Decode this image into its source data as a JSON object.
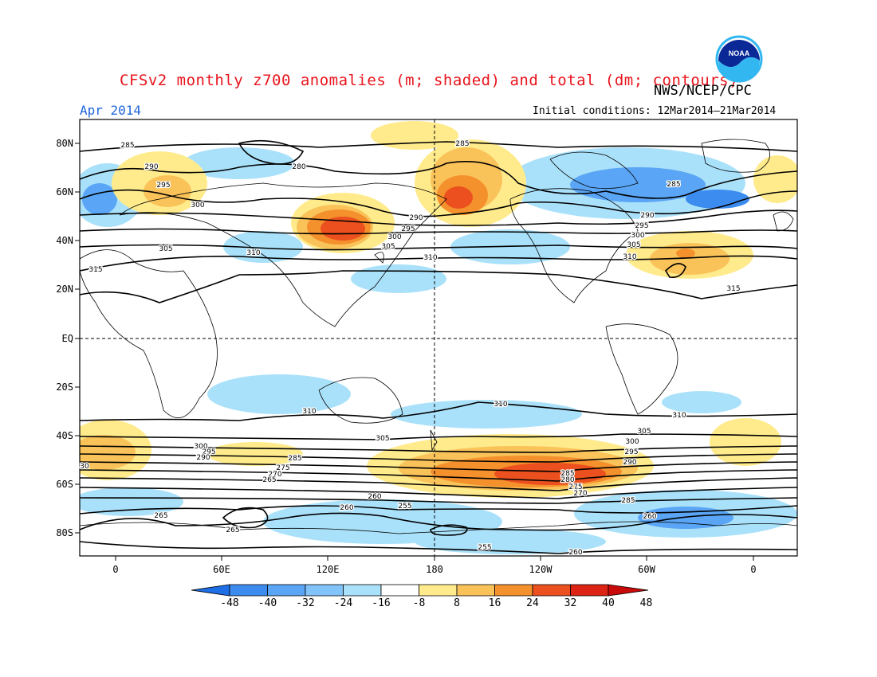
{
  "header": {
    "title": "CFSv2 monthly z700 anomalies (m; shaded) and total (dm; contours)",
    "agency": "NWS/NCEP/CPC",
    "month": "Apr 2014",
    "initial_conditions": "Initial conditions: 12Mar2014–21Mar2014",
    "logo_text": "NOAA"
  },
  "axes": {
    "lat_labels": [
      "80N",
      "60N",
      "40N",
      "20N",
      "EQ",
      "20S",
      "40S",
      "60S",
      "80S"
    ],
    "lon_labels": [
      "0",
      "60E",
      "120E",
      "180",
      "120W",
      "60W",
      "0"
    ]
  },
  "colorbar": {
    "labels": [
      "-48",
      "-40",
      "-32",
      "-24",
      "-16",
      "-8",
      "8",
      "16",
      "24",
      "32",
      "40",
      "48"
    ],
    "colors": [
      "#1e6ee6",
      "#3c8cf0",
      "#5aa5f5",
      "#82c3fa",
      "#aae1fa",
      "#ffffff",
      "#ffeb8c",
      "#fac35a",
      "#f5912d",
      "#eb501e",
      "#dc2314",
      "#c80a0a"
    ]
  },
  "contour_labels": [
    {
      "text": "285"
    },
    {
      "text": "290"
    },
    {
      "text": "295"
    },
    {
      "text": "300"
    },
    {
      "text": "305"
    },
    {
      "text": "310"
    },
    {
      "text": "315"
    },
    {
      "text": "280"
    },
    {
      "text": "285"
    },
    {
      "text": "290"
    },
    {
      "text": "295"
    },
    {
      "text": "300"
    },
    {
      "text": "305"
    },
    {
      "text": "310"
    },
    {
      "text": "285"
    },
    {
      "text": "290"
    },
    {
      "text": "295"
    },
    {
      "text": "300"
    },
    {
      "text": "305"
    },
    {
      "text": "310"
    },
    {
      "text": "315"
    },
    {
      "text": "310"
    },
    {
      "text": "305"
    },
    {
      "text": "300"
    },
    {
      "text": "295"
    },
    {
      "text": "290"
    },
    {
      "text": "285"
    },
    {
      "text": "275"
    },
    {
      "text": "270"
    },
    {
      "text": "265"
    },
    {
      "text": "260"
    },
    {
      "text": "255"
    },
    {
      "text": "260"
    },
    {
      "text": "265"
    },
    {
      "text": "265"
    },
    {
      "text": "310"
    },
    {
      "text": "310"
    },
    {
      "text": "305"
    },
    {
      "text": "300"
    },
    {
      "text": "295"
    },
    {
      "text": "290"
    },
    {
      "text": "285"
    },
    {
      "text": "280"
    },
    {
      "text": "275"
    },
    {
      "text": "270"
    },
    {
      "text": "285"
    },
    {
      "text": "260"
    },
    {
      "text": "255"
    },
    {
      "text": "260"
    },
    {
      "text": "30"
    }
  ]
}
